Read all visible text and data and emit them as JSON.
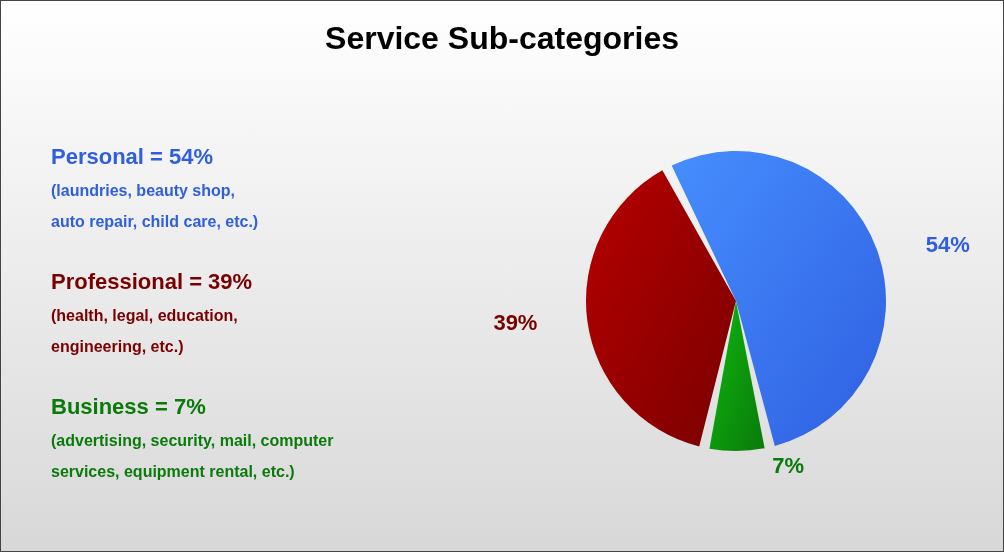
{
  "chart_data": {
    "type": "pie",
    "title": "Service Sub-categories",
    "categories": [
      null,
      null,
      null
    ],
    "values": [
      54,
      39,
      7
    ],
    "colors": [
      "#2f5fe0",
      "#7a0000",
      "#0a7a0a"
    ],
    "value_labels": [
      "54%",
      "39%",
      "7%"
    ],
    "annotations": [
      "Personal = 54%",
      "(laundries, beauty shop,\nauto repair, child care, etc.)",
      "Professional = 39%",
      "(health, legal, education,\nengineering, etc.)",
      "Business = 7%",
      "(advertising, security, mail, computer\nservices, equipment rental, etc.)"
    ]
  }
}
